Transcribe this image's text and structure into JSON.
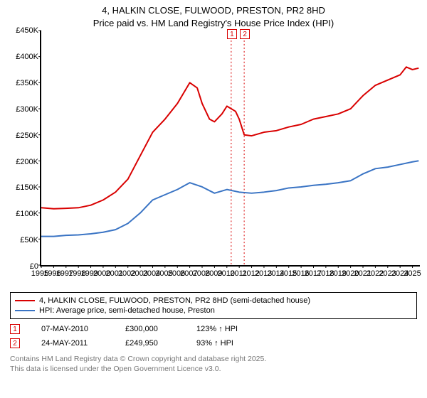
{
  "title_line1": "4, HALKIN CLOSE, FULWOOD, PRESTON, PR2 8HD",
  "title_line2": "Price paid vs. HM Land Registry's House Price Index (HPI)",
  "chart": {
    "type": "line",
    "background_color": "#ffffff",
    "axis_color": "#000000",
    "x_years": [
      1995,
      1996,
      1997,
      1998,
      1999,
      2000,
      2001,
      2002,
      2003,
      2004,
      2005,
      2006,
      2007,
      2008,
      2009,
      2010,
      2011,
      2012,
      2013,
      2014,
      2015,
      2016,
      2017,
      2018,
      2019,
      2020,
      2021,
      2022,
      2023,
      2024,
      2025
    ],
    "xlim": [
      1995,
      2025.6
    ],
    "ylim": [
      0,
      450000
    ],
    "ytick_step": 50000,
    "ytick_labels": [
      "£0",
      "£50K",
      "£100K",
      "£150K",
      "£200K",
      "£250K",
      "£300K",
      "£350K",
      "£400K",
      "£450K"
    ],
    "series": [
      {
        "name": "4, HALKIN CLOSE, FULWOOD, PRESTON, PR2 8HD (semi-detached house)",
        "color": "#d90000",
        "line_width": 2,
        "points": [
          [
            1995,
            110000
          ],
          [
            1996,
            108000
          ],
          [
            1997,
            109000
          ],
          [
            1998,
            110000
          ],
          [
            1999,
            115000
          ],
          [
            2000,
            125000
          ],
          [
            2001,
            140000
          ],
          [
            2002,
            165000
          ],
          [
            2003,
            210000
          ],
          [
            2004,
            255000
          ],
          [
            2005,
            280000
          ],
          [
            2006,
            310000
          ],
          [
            2007,
            350000
          ],
          [
            2007.6,
            340000
          ],
          [
            2008,
            310000
          ],
          [
            2008.6,
            280000
          ],
          [
            2009,
            275000
          ],
          [
            2009.6,
            290000
          ],
          [
            2010,
            305000
          ],
          [
            2010.35,
            300000
          ],
          [
            2010.7,
            295000
          ],
          [
            2011,
            280000
          ],
          [
            2011.4,
            249950
          ],
          [
            2012,
            248000
          ],
          [
            2013,
            255000
          ],
          [
            2014,
            258000
          ],
          [
            2015,
            265000
          ],
          [
            2016,
            270000
          ],
          [
            2017,
            280000
          ],
          [
            2018,
            285000
          ],
          [
            2019,
            290000
          ],
          [
            2020,
            300000
          ],
          [
            2021,
            325000
          ],
          [
            2022,
            345000
          ],
          [
            2023,
            355000
          ],
          [
            2024,
            365000
          ],
          [
            2024.5,
            380000
          ],
          [
            2025,
            375000
          ],
          [
            2025.5,
            378000
          ]
        ]
      },
      {
        "name": "HPI: Average price, semi-detached house, Preston",
        "color": "#3a74c4",
        "line_width": 2,
        "points": [
          [
            1995,
            55000
          ],
          [
            1996,
            55000
          ],
          [
            1997,
            57000
          ],
          [
            1998,
            58000
          ],
          [
            1999,
            60000
          ],
          [
            2000,
            63000
          ],
          [
            2001,
            68000
          ],
          [
            2002,
            80000
          ],
          [
            2003,
            100000
          ],
          [
            2004,
            125000
          ],
          [
            2005,
            135000
          ],
          [
            2006,
            145000
          ],
          [
            2007,
            158000
          ],
          [
            2008,
            150000
          ],
          [
            2009,
            138000
          ],
          [
            2010,
            145000
          ],
          [
            2011,
            140000
          ],
          [
            2012,
            138000
          ],
          [
            2013,
            140000
          ],
          [
            2014,
            143000
          ],
          [
            2015,
            148000
          ],
          [
            2016,
            150000
          ],
          [
            2017,
            153000
          ],
          [
            2018,
            155000
          ],
          [
            2019,
            158000
          ],
          [
            2020,
            162000
          ],
          [
            2021,
            175000
          ],
          [
            2022,
            185000
          ],
          [
            2023,
            188000
          ],
          [
            2024,
            193000
          ],
          [
            2025,
            198000
          ],
          [
            2025.5,
            200000
          ]
        ]
      }
    ],
    "sale_markers": [
      {
        "label": "1",
        "x": 2010.35,
        "color": "#d90000",
        "dash_color": "#d90000"
      },
      {
        "label": "2",
        "x": 2011.4,
        "color": "#d90000",
        "dash_color": "#d90000"
      }
    ]
  },
  "legend": {
    "items": [
      {
        "color": "#d90000",
        "label": "4, HALKIN CLOSE, FULWOOD, PRESTON, PR2 8HD (semi-detached house)"
      },
      {
        "color": "#3a74c4",
        "label": "HPI: Average price, semi-detached house, Preston"
      }
    ]
  },
  "sales": [
    {
      "marker": "1",
      "marker_color": "#d90000",
      "date": "07-MAY-2010",
      "price": "£300,000",
      "hpi": "123% ↑ HPI"
    },
    {
      "marker": "2",
      "marker_color": "#d90000",
      "date": "24-MAY-2011",
      "price": "£249,950",
      "hpi": "93% ↑ HPI"
    }
  ],
  "footer_line1": "Contains HM Land Registry data © Crown copyright and database right 2025.",
  "footer_line2": "This data is licensed under the Open Government Licence v3.0."
}
